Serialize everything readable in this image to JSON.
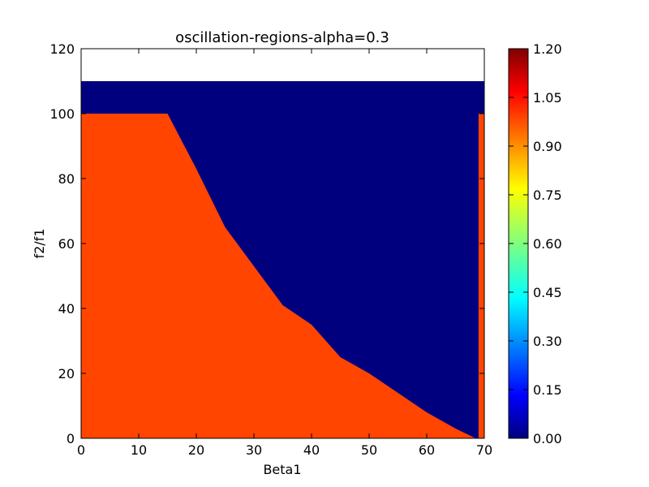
{
  "chart_data": {
    "type": "heatmap",
    "title": "oscillation-regions-alpha=0.3",
    "xlabel": "Beta1",
    "ylabel": "f2/f1",
    "xlim": [
      0,
      70
    ],
    "ylim": [
      0,
      120
    ],
    "data_extent": {
      "x": [
        0,
        70
      ],
      "y": [
        0,
        110
      ]
    },
    "x_ticks": [
      "0",
      "10",
      "20",
      "30",
      "40",
      "50",
      "60",
      "70"
    ],
    "y_ticks": [
      "0",
      "20",
      "40",
      "60",
      "80",
      "100",
      "120"
    ],
    "colorbar": {
      "colormap": "jet",
      "range": [
        0,
        1.2
      ],
      "ticks": [
        "0.00",
        "0.15",
        "0.30",
        "0.45",
        "0.60",
        "0.75",
        "0.90",
        "1.05",
        "1.20"
      ]
    },
    "regions": {
      "high_value": 1.0,
      "low_value": 0.0,
      "boundary_f2f1_by_beta1": {
        "beta1": [
          0,
          15,
          20,
          25,
          30,
          35,
          40,
          45,
          50,
          55,
          60,
          65,
          68.5,
          69
        ],
        "f2f1": [
          100,
          100,
          83,
          65,
          53,
          41,
          35,
          25,
          20,
          14,
          8,
          3,
          0,
          0
        ]
      },
      "right_edge_column": {
        "beta1": [
          69,
          70
        ],
        "f2f1": [
          0,
          100
        ],
        "value": 1.0
      }
    },
    "grid": false,
    "legend": "colorbar-right"
  }
}
